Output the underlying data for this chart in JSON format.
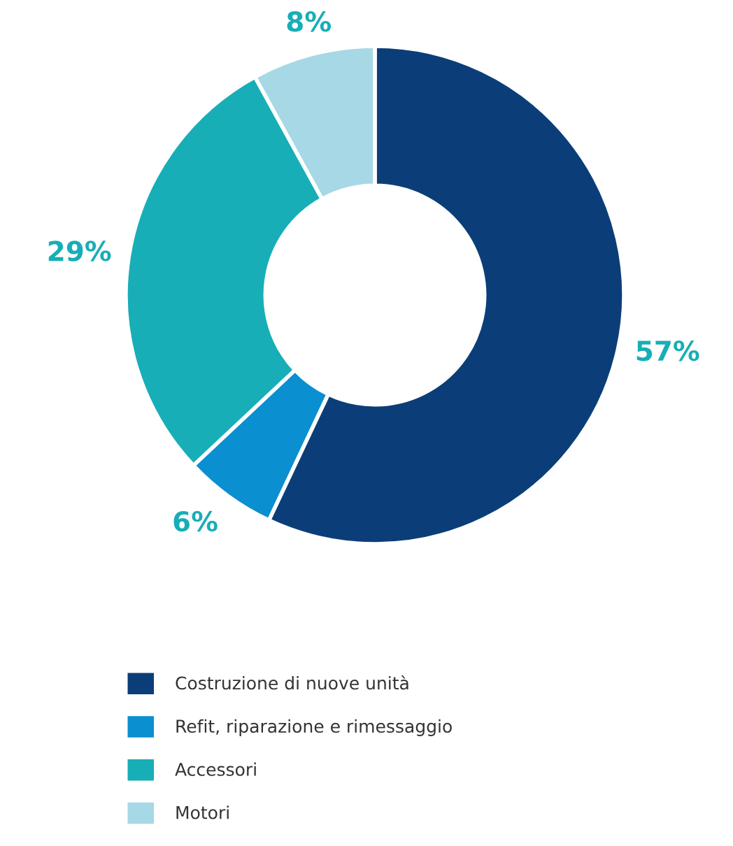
{
  "chart_data": {
    "type": "donut",
    "categories": [
      "Costruzione di nuove unità",
      "Refit, riparazione e rimessaggio",
      "Accessori",
      "Motori"
    ],
    "values": [
      57,
      6,
      29,
      8
    ],
    "colors": [
      "#0b3e78",
      "#0a8fd0",
      "#17aeb7",
      "#a6d8e6"
    ],
    "value_labels": [
      "57%",
      "6%",
      "29%",
      "8%"
    ],
    "legend": "bottom"
  }
}
